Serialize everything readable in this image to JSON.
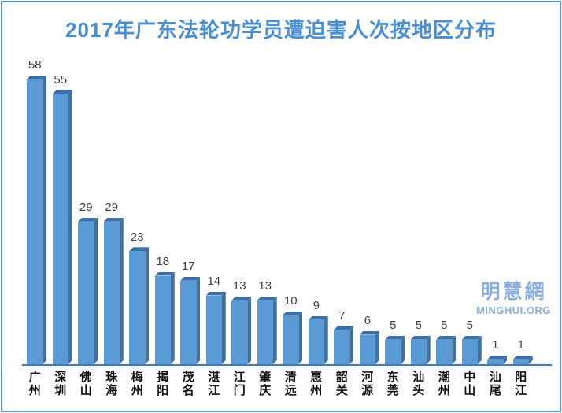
{
  "title": "2017年广东法轮功学员遭迫害人次按地区分布",
  "watermark": {
    "cjk": "明慧網",
    "latin": "MINGHUI.ORG"
  },
  "colors": {
    "frame_border": "#5995d2",
    "title_text": "#4a8fd3",
    "bar_front": "#5b9bd5",
    "bar_top": "#3d6fa6",
    "bar_side": "#41719c",
    "axis_main_line": "#4577b8",
    "axis_sub_line": "#9cc0e6",
    "value_label": "#3f3f3f",
    "x_label": "#111111",
    "watermark": "#8aade0"
  },
  "chart_data": {
    "type": "bar",
    "style": "3d-column",
    "title": "2017年广东法轮功学员遭迫害人次按地区分布",
    "categories": [
      "广州",
      "深圳",
      "佛山",
      "珠海",
      "梅州",
      "揭阳",
      "茂名",
      "湛江",
      "江门",
      "肇庆",
      "清远",
      "惠州",
      "韶关",
      "河源",
      "东莞",
      "汕头",
      "潮州",
      "中山",
      "汕尾",
      "阳江"
    ],
    "values": [
      58,
      55,
      29,
      29,
      23,
      18,
      17,
      14,
      13,
      13,
      10,
      9,
      7,
      6,
      5,
      5,
      5,
      5,
      1,
      1
    ],
    "xlabel": "",
    "ylabel": "",
    "ylim": [
      0,
      60
    ],
    "grid": false,
    "legend": false,
    "y_axis_visible": false,
    "value_labels_visible": true,
    "x_label_orientation": "vertical"
  }
}
